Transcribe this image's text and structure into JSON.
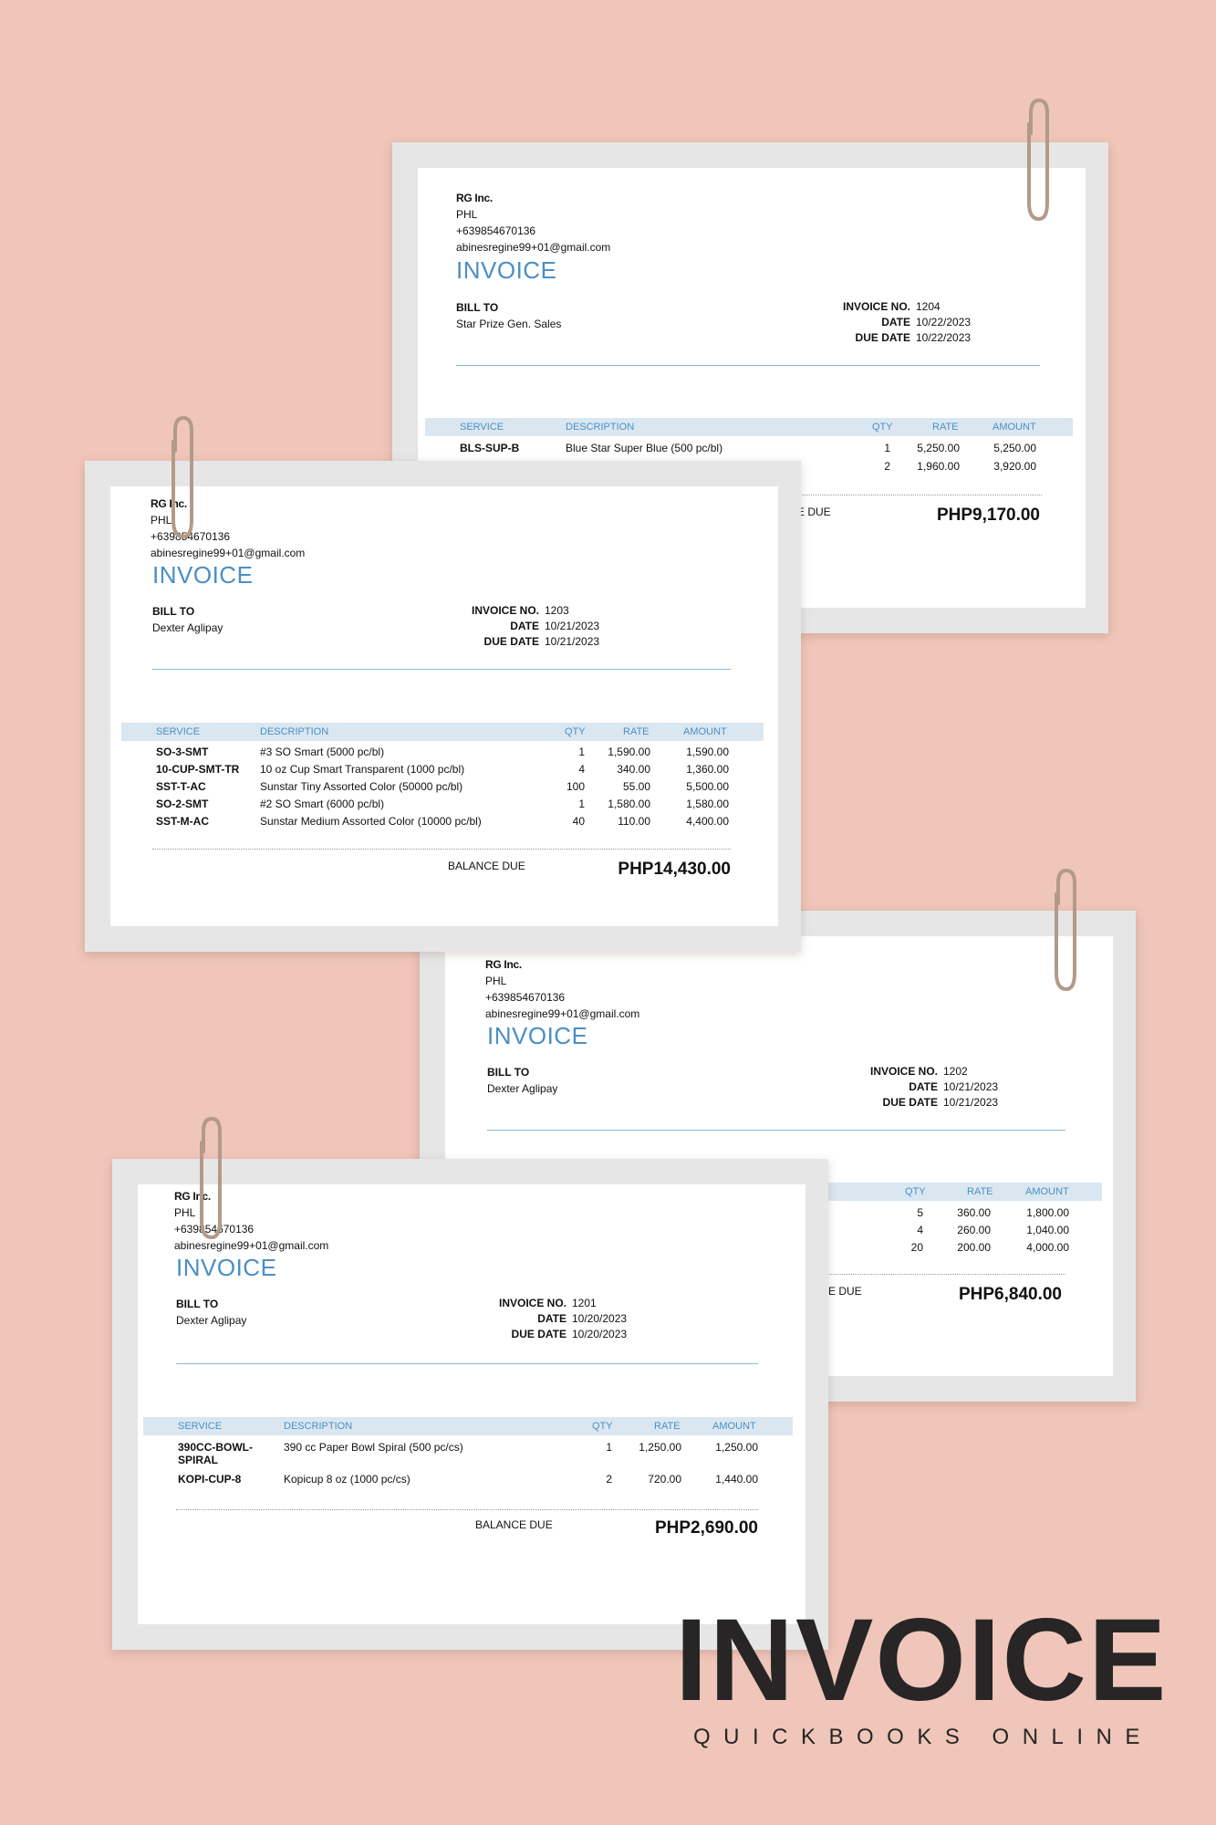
{
  "company": {
    "name": "RG Inc.",
    "country": "PHL",
    "phone": "+639854670136",
    "email": "abinesregine99+01@gmail.com"
  },
  "labels": {
    "invoice": "INVOICE",
    "bill_to": "BILL TO",
    "invoice_no": "INVOICE NO.",
    "date": "DATE",
    "due_date": "DUE DATE",
    "balance_due": "BALANCE DUE",
    "col_service": "SERVICE",
    "col_description": "DESCRIPTION",
    "col_qty": "QTY",
    "col_rate": "RATE",
    "col_amount": "AMOUNT"
  },
  "invoices": [
    {
      "number": "1204",
      "date": "10/22/2023",
      "due_date": "10/22/2023",
      "customer": "Star Prize Gen. Sales",
      "items": [
        {
          "service": "BLS-SUP-B",
          "description": "Blue Star Super Blue (500 pc/bl)",
          "qty": "1",
          "rate": "5,250.00",
          "amount": "5,250.00"
        },
        {
          "service": "",
          "description": "",
          "qty": "2",
          "rate": "1,960.00",
          "amount": "3,920.00"
        }
      ],
      "balance_due_partial": "E DUE",
      "balance": "PHP9,170.00"
    },
    {
      "number": "1203",
      "date": "10/21/2023",
      "due_date": "10/21/2023",
      "customer": "Dexter Aglipay",
      "items": [
        {
          "service": "SO-3-SMT",
          "description": "#3 SO Smart (5000 pc/bl)",
          "qty": "1",
          "rate": "1,590.00",
          "amount": "1,590.00"
        },
        {
          "service": "10-CUP-SMT-TR",
          "description": "10 oz Cup Smart Transparent (1000 pc/bl)",
          "qty": "4",
          "rate": "340.00",
          "amount": "1,360.00"
        },
        {
          "service": "SST-T-AC",
          "description": "Sunstar Tiny Assorted Color (50000 pc/bl)",
          "qty": "100",
          "rate": "55.00",
          "amount": "5,500.00"
        },
        {
          "service": "SO-2-SMT",
          "description": "#2 SO Smart (6000 pc/bl)",
          "qty": "1",
          "rate": "1,580.00",
          "amount": "1,580.00"
        },
        {
          "service": "SST-M-AC",
          "description": "Sunstar Medium Assorted Color (10000 pc/bl)",
          "qty": "40",
          "rate": "110.00",
          "amount": "4,400.00"
        }
      ],
      "balance": "PHP14,430.00"
    },
    {
      "number": "1202",
      "date": "10/21/2023",
      "due_date": "10/21/2023",
      "customer": "Dexter Aglipay",
      "items": [
        {
          "service": "",
          "description": "",
          "qty": "5",
          "rate": "360.00",
          "amount": "1,800.00"
        },
        {
          "service": "",
          "description": "",
          "qty": "4",
          "rate": "260.00",
          "amount": "1,040.00"
        },
        {
          "service": "",
          "description": "",
          "qty": "20",
          "rate": "200.00",
          "amount": "4,000.00"
        }
      ],
      "balance_due_partial": "E DUE",
      "balance": "PHP6,840.00"
    },
    {
      "number": "1201",
      "date": "10/20/2023",
      "due_date": "10/20/2023",
      "customer": "Dexter Aglipay",
      "items": [
        {
          "service": "390CC-BOWL-SPIRAL",
          "description": "390 cc Paper Bowl Spiral (500 pc/cs)",
          "qty": "1",
          "rate": "1,250.00",
          "amount": "1,250.00"
        },
        {
          "service": "KOPI-CUP-8",
          "description": "Kopicup 8 oz (1000 pc/cs)",
          "qty": "2",
          "rate": "720.00",
          "amount": "1,440.00"
        }
      ],
      "balance": "PHP2,690.00"
    }
  ],
  "poster": {
    "title": "INVOICE",
    "subtitle": "QUICKBOOKS ONLINE"
  },
  "colors": {
    "background": "#efc6b9",
    "accent": "#4a8fc4",
    "table_header": "#dae7f1",
    "clip": "#b39a88"
  },
  "icons": [
    "paper-clip-icon"
  ]
}
